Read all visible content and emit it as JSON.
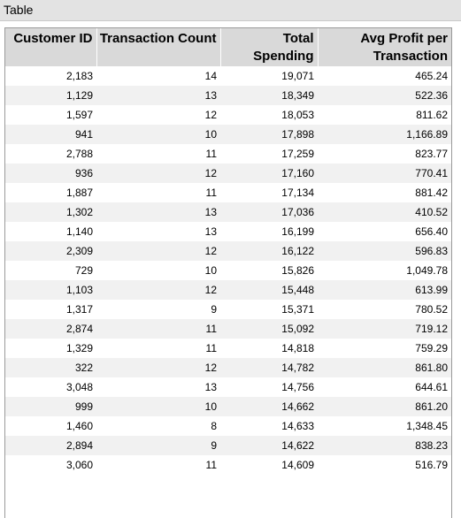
{
  "panel": {
    "title": "Table"
  },
  "table": {
    "columns": [
      {
        "label": "Customer ID"
      },
      {
        "label": "Transaction Count"
      },
      {
        "label": "Total Spending"
      },
      {
        "label": "Avg Profit per Transaction"
      }
    ],
    "rows": [
      [
        "2,183",
        "14",
        "19,071",
        "465.24"
      ],
      [
        "1,129",
        "13",
        "18,349",
        "522.36"
      ],
      [
        "1,597",
        "12",
        "18,053",
        "811.62"
      ],
      [
        "941",
        "10",
        "17,898",
        "1,166.89"
      ],
      [
        "2,788",
        "11",
        "17,259",
        "823.77"
      ],
      [
        "936",
        "12",
        "17,160",
        "770.41"
      ],
      [
        "1,887",
        "11",
        "17,134",
        "881.42"
      ],
      [
        "1,302",
        "13",
        "17,036",
        "410.52"
      ],
      [
        "1,140",
        "13",
        "16,199",
        "656.40"
      ],
      [
        "2,309",
        "12",
        "16,122",
        "596.83"
      ],
      [
        "729",
        "10",
        "15,826",
        "1,049.78"
      ],
      [
        "1,103",
        "12",
        "15,448",
        "613.99"
      ],
      [
        "1,317",
        "9",
        "15,371",
        "780.52"
      ],
      [
        "2,874",
        "11",
        "15,092",
        "719.12"
      ],
      [
        "1,329",
        "11",
        "14,818",
        "759.29"
      ],
      [
        "322",
        "12",
        "14,782",
        "861.80"
      ],
      [
        "3,048",
        "13",
        "14,756",
        "644.61"
      ],
      [
        "999",
        "10",
        "14,662",
        "861.20"
      ],
      [
        "1,460",
        "8",
        "14,633",
        "1,348.45"
      ],
      [
        "2,894",
        "9",
        "14,622",
        "838.23"
      ],
      [
        "3,060",
        "11",
        "14,609",
        "516.79"
      ]
    ]
  }
}
